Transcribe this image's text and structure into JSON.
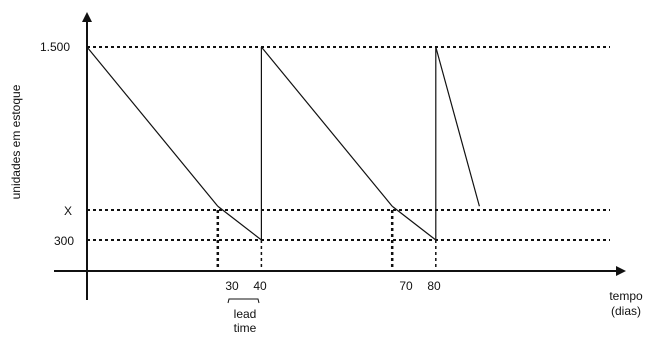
{
  "chart_data": {
    "type": "line",
    "title": "",
    "xlabel": [
      "tempo",
      "(dias)"
    ],
    "ylabel": "unidades em estoque",
    "y_ticks": [
      "1.500",
      "X",
      "300"
    ],
    "y_values": {
      "max": 1500,
      "reorder": "X",
      "min": 300
    },
    "x_ticks": [
      30,
      40,
      70,
      80
    ],
    "xlim": [
      0,
      92
    ],
    "ylim": [
      0,
      1500
    ],
    "series": [
      {
        "points": [
          [
            0,
            1500
          ],
          [
            30,
            510
          ],
          [
            40,
            300
          ],
          [
            40,
            1500
          ],
          [
            70,
            510
          ],
          [
            80,
            300
          ],
          [
            80,
            1500
          ],
          [
            90,
            510
          ]
        ]
      }
    ],
    "reference_lines": {
      "horizontal": [
        "1.500",
        "X",
        "300"
      ],
      "vertical": [
        30,
        40,
        70,
        80
      ]
    },
    "annotation": {
      "text": [
        "lead",
        "time"
      ],
      "from": 30,
      "to": 40
    },
    "grid": false,
    "legend": "none"
  }
}
